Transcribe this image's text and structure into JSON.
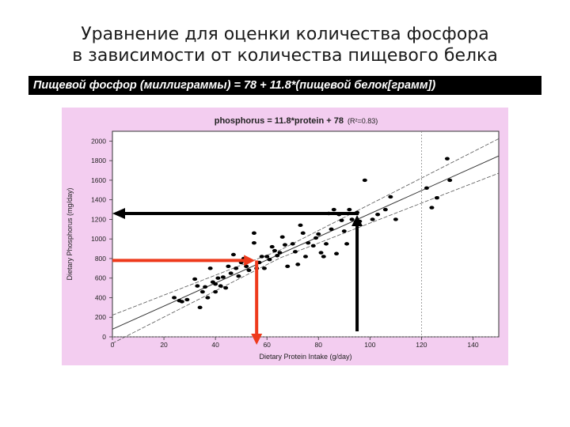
{
  "slide": {
    "title_line1": "Уравнение для оценки количества фосфора",
    "title_line2": "в зависимости от количества пищевого белка",
    "formula": "Пищевой фосфор (миллиграммы) = 78 + 11.8*(пищевой белок[грамм])"
  },
  "colors": {
    "panel_bg": "#f3cdf0",
    "plot_bg": "#ffffff",
    "point": "#000000",
    "arrow_black": "#000000",
    "arrow_red": "#ee3a1c"
  },
  "chart_data": {
    "type": "scatter",
    "title": "phosphorus = 11.8*protein + 78",
    "title_suffix": "(R²=0.83)",
    "xlabel": "Dietary Protein Intake (g/day)",
    "ylabel": "Dietary Phosphorus (mg/day)",
    "xlim": [
      0,
      150
    ],
    "ylim": [
      0,
      2100
    ],
    "xticks": [
      0,
      20,
      40,
      60,
      80,
      100,
      120,
      140
    ],
    "yticks": [
      0,
      200,
      400,
      600,
      800,
      1000,
      1200,
      1400,
      1600,
      1800,
      2000
    ],
    "regression": {
      "slope": 11.8,
      "intercept": 78
    },
    "confidence_band": {
      "half_width_at_mean": 40,
      "mean_x": 65,
      "growth_per_gram": 1.6
    },
    "reference_x": 120,
    "points": [
      [
        24,
        400
      ],
      [
        26,
        370
      ],
      [
        27,
        360
      ],
      [
        29,
        380
      ],
      [
        32,
        590
      ],
      [
        33,
        520
      ],
      [
        34,
        300
      ],
      [
        35,
        460
      ],
      [
        36,
        510
      ],
      [
        37,
        400
      ],
      [
        38,
        700
      ],
      [
        39,
        560
      ],
      [
        40,
        460
      ],
      [
        40,
        540
      ],
      [
        41,
        600
      ],
      [
        42,
        520
      ],
      [
        43,
        610
      ],
      [
        44,
        500
      ],
      [
        45,
        720
      ],
      [
        46,
        650
      ],
      [
        47,
        840
      ],
      [
        48,
        700
      ],
      [
        49,
        620
      ],
      [
        50,
        760
      ],
      [
        51,
        800
      ],
      [
        52,
        720
      ],
      [
        53,
        680
      ],
      [
        55,
        1060
      ],
      [
        55,
        960
      ],
      [
        56,
        700
      ],
      [
        57,
        760
      ],
      [
        58,
        820
      ],
      [
        59,
        700
      ],
      [
        60,
        820
      ],
      [
        61,
        790
      ],
      [
        62,
        920
      ],
      [
        63,
        880
      ],
      [
        64,
        830
      ],
      [
        65,
        860
      ],
      [
        66,
        1020
      ],
      [
        67,
        940
      ],
      [
        68,
        720
      ],
      [
        70,
        950
      ],
      [
        71,
        870
      ],
      [
        72,
        740
      ],
      [
        73,
        1140
      ],
      [
        74,
        1060
      ],
      [
        75,
        820
      ],
      [
        76,
        960
      ],
      [
        78,
        930
      ],
      [
        79,
        1010
      ],
      [
        80,
        1050
      ],
      [
        81,
        860
      ],
      [
        82,
        820
      ],
      [
        83,
        950
      ],
      [
        84,
        1260
      ],
      [
        85,
        1100
      ],
      [
        86,
        1300
      ],
      [
        87,
        850
      ],
      [
        88,
        1250
      ],
      [
        89,
        1190
      ],
      [
        90,
        1080
      ],
      [
        91,
        950
      ],
      [
        92,
        1300
      ],
      [
        93,
        1200
      ],
      [
        95,
        1270
      ],
      [
        96,
        1180
      ],
      [
        98,
        1600
      ],
      [
        101,
        1200
      ],
      [
        103,
        1250
      ],
      [
        106,
        1300
      ],
      [
        108,
        1430
      ],
      [
        110,
        1200
      ],
      [
        122,
        1520
      ],
      [
        124,
        1320
      ],
      [
        126,
        1420
      ],
      [
        130,
        1820
      ],
      [
        131,
        1600
      ]
    ]
  },
  "annotations": {
    "black_arrows": {
      "vertical_x": 95,
      "horizontal_y": 1260
    },
    "red_arrows": {
      "from_x": 0,
      "horizontal_y": 780,
      "vertical_x": 56,
      "vertical_end_y": 0
    }
  }
}
